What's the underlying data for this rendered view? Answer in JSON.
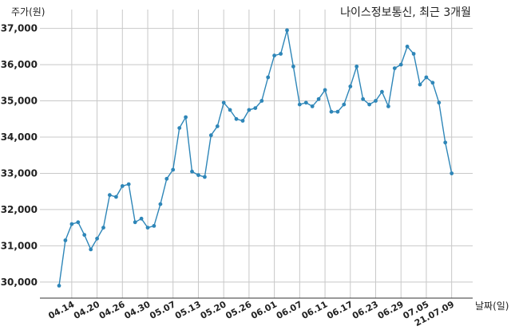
{
  "chart_data": {
    "type": "line",
    "title": "나이스정보통신, 최근 3개월",
    "ylabel": "주가(원)",
    "xlabel": "날짜(일)",
    "ylim": [
      29600,
      37300
    ],
    "yticks": [
      30000,
      31000,
      32000,
      33000,
      34000,
      35000,
      36000,
      37000
    ],
    "ytick_labels": [
      "30,000",
      "31,000",
      "32,000",
      "33,000",
      "34,000",
      "35,000",
      "36,000",
      "37,000"
    ],
    "xticks": [
      {
        "index": 2,
        "label": "04.14"
      },
      {
        "index": 6,
        "label": "04.20"
      },
      {
        "index": 10,
        "label": "04.26"
      },
      {
        "index": 14,
        "label": "04.30"
      },
      {
        "index": 18,
        "label": "05.07"
      },
      {
        "index": 22,
        "label": "05.13"
      },
      {
        "index": 26,
        "label": "05.20"
      },
      {
        "index": 30,
        "label": "05.26"
      },
      {
        "index": 34,
        "label": "06.01"
      },
      {
        "index": 38,
        "label": "06.07"
      },
      {
        "index": 42,
        "label": "06.11"
      },
      {
        "index": 46,
        "label": "06.17"
      },
      {
        "index": 50,
        "label": "06.23"
      },
      {
        "index": 54,
        "label": "06.29"
      },
      {
        "index": 58,
        "label": "07.05"
      },
      {
        "index": 62,
        "label": "21.07.09"
      }
    ],
    "grid": true,
    "color": "#2e86b8",
    "series": [
      {
        "values": [
          29900,
          31150,
          31600,
          31650,
          31300,
          30900,
          31200,
          31500,
          32400,
          32350,
          32650,
          32700,
          31650,
          31750,
          31500,
          31550,
          32150,
          32850,
          33100,
          34250,
          34550,
          33050,
          32950,
          32900,
          34050,
          34300,
          34950,
          34750,
          34500,
          34450,
          34750,
          34800,
          35000,
          35650,
          36250,
          36300,
          36950,
          35950,
          34900,
          34950,
          34850,
          35050,
          35300,
          34700,
          34700,
          34900,
          35400,
          35950,
          35050,
          34900,
          35000,
          35250,
          34850,
          35900,
          36000,
          36500,
          36300,
          35450,
          35650,
          35500,
          34950,
          33850,
          33000
        ]
      }
    ]
  }
}
